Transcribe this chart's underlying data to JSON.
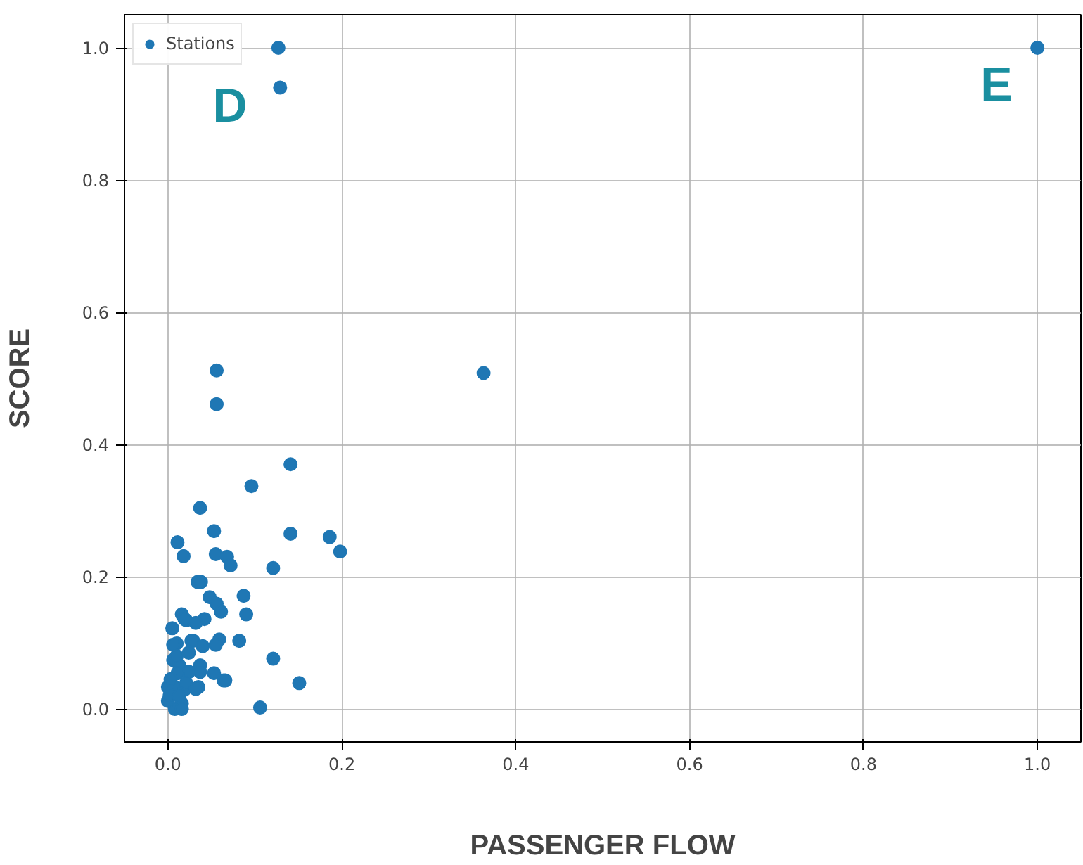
{
  "chart_data": {
    "type": "scatter",
    "xlabel": "PASSENGER FLOW",
    "ylabel": "SCORE",
    "xlim": [
      -0.05,
      1.05
    ],
    "ylim": [
      -0.05,
      1.05
    ],
    "xticks": [
      {
        "value": 0,
        "label": "0.0"
      },
      {
        "value": 0.2,
        "label": "0.2"
      },
      {
        "value": 0.4,
        "label": "0.4"
      },
      {
        "value": 0.6,
        "label": "0.6"
      },
      {
        "value": 0.8,
        "label": "0.8"
      },
      {
        "value": 1,
        "label": "1.0"
      }
    ],
    "yticks": [
      {
        "value": 0,
        "label": "0.0"
      },
      {
        "value": 0.2,
        "label": "0.2"
      },
      {
        "value": 0.4,
        "label": "0.4"
      },
      {
        "value": 0.6,
        "label": "0.6"
      },
      {
        "value": 0.8,
        "label": "0.8"
      },
      {
        "value": 1,
        "label": "1.0"
      }
    ],
    "grid": true,
    "legend": "top left",
    "marker": "circle",
    "annotations": [
      "D",
      "E"
    ],
    "series": [
      {
        "name": "Stations",
        "color": "#1f77b4",
        "x": [
          0.127,
          0.129,
          1.0,
          0.056,
          0.056,
          0.363,
          0.141,
          0.096,
          0.037,
          0.141,
          0.186,
          0.053,
          0.011,
          0.198,
          0.018,
          0.055,
          0.068,
          0.072,
          0.121,
          0.034,
          0.038,
          0.087,
          0.048,
          0.056,
          0.061,
          0.016,
          0.09,
          0.042,
          0.021,
          0.032,
          0.005,
          0.082,
          0.059,
          0.055,
          0.01,
          0.027,
          0.121,
          0.151,
          0.106,
          0.064,
          0.053,
          0.006,
          0.019,
          0.029,
          0.04,
          0.006,
          0.013,
          0.037,
          0.037,
          0.024,
          0.066,
          0.0,
          0.008,
          0.019,
          0.035,
          0.016,
          0.008,
          0.0,
          0.011,
          0.003,
          0.002,
          0.013,
          0.021,
          0.032,
          0.01,
          0.024,
          0.016
        ],
        "values": [
          1.0,
          0.94,
          1.0,
          0.512,
          0.461,
          0.508,
          0.37,
          0.337,
          0.304,
          0.265,
          0.26,
          0.269,
          0.252,
          0.238,
          0.231,
          0.234,
          0.23,
          0.217,
          0.213,
          0.192,
          0.192,
          0.171,
          0.169,
          0.159,
          0.147,
          0.143,
          0.143,
          0.136,
          0.134,
          0.13,
          0.122,
          0.103,
          0.105,
          0.097,
          0.099,
          0.103,
          0.076,
          0.039,
          0.002,
          0.043,
          0.054,
          0.097,
          0.136,
          0.103,
          0.095,
          0.074,
          0.066,
          0.066,
          0.056,
          0.056,
          0.043,
          0.033,
          0.033,
          0.029,
          0.033,
          0.008,
          0.0,
          0.012,
          0.054,
          0.045,
          0.021,
          0.019,
          0.039,
          0.03,
          0.08,
          0.085,
          0.0
        ]
      }
    ]
  }
}
